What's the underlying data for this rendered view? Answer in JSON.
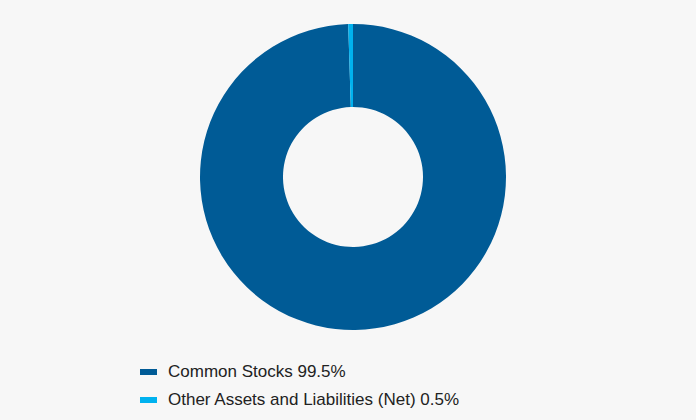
{
  "chart_data": {
    "type": "pie",
    "categories": [
      "Common Stocks",
      "Other Assets and Liabilities (Net)"
    ],
    "values": [
      99.5,
      0.5
    ],
    "value_labels": [
      "99.5%",
      "0.5%"
    ],
    "colors": [
      "#005b96",
      "#00b2ef"
    ],
    "legend": "bottom"
  }
}
